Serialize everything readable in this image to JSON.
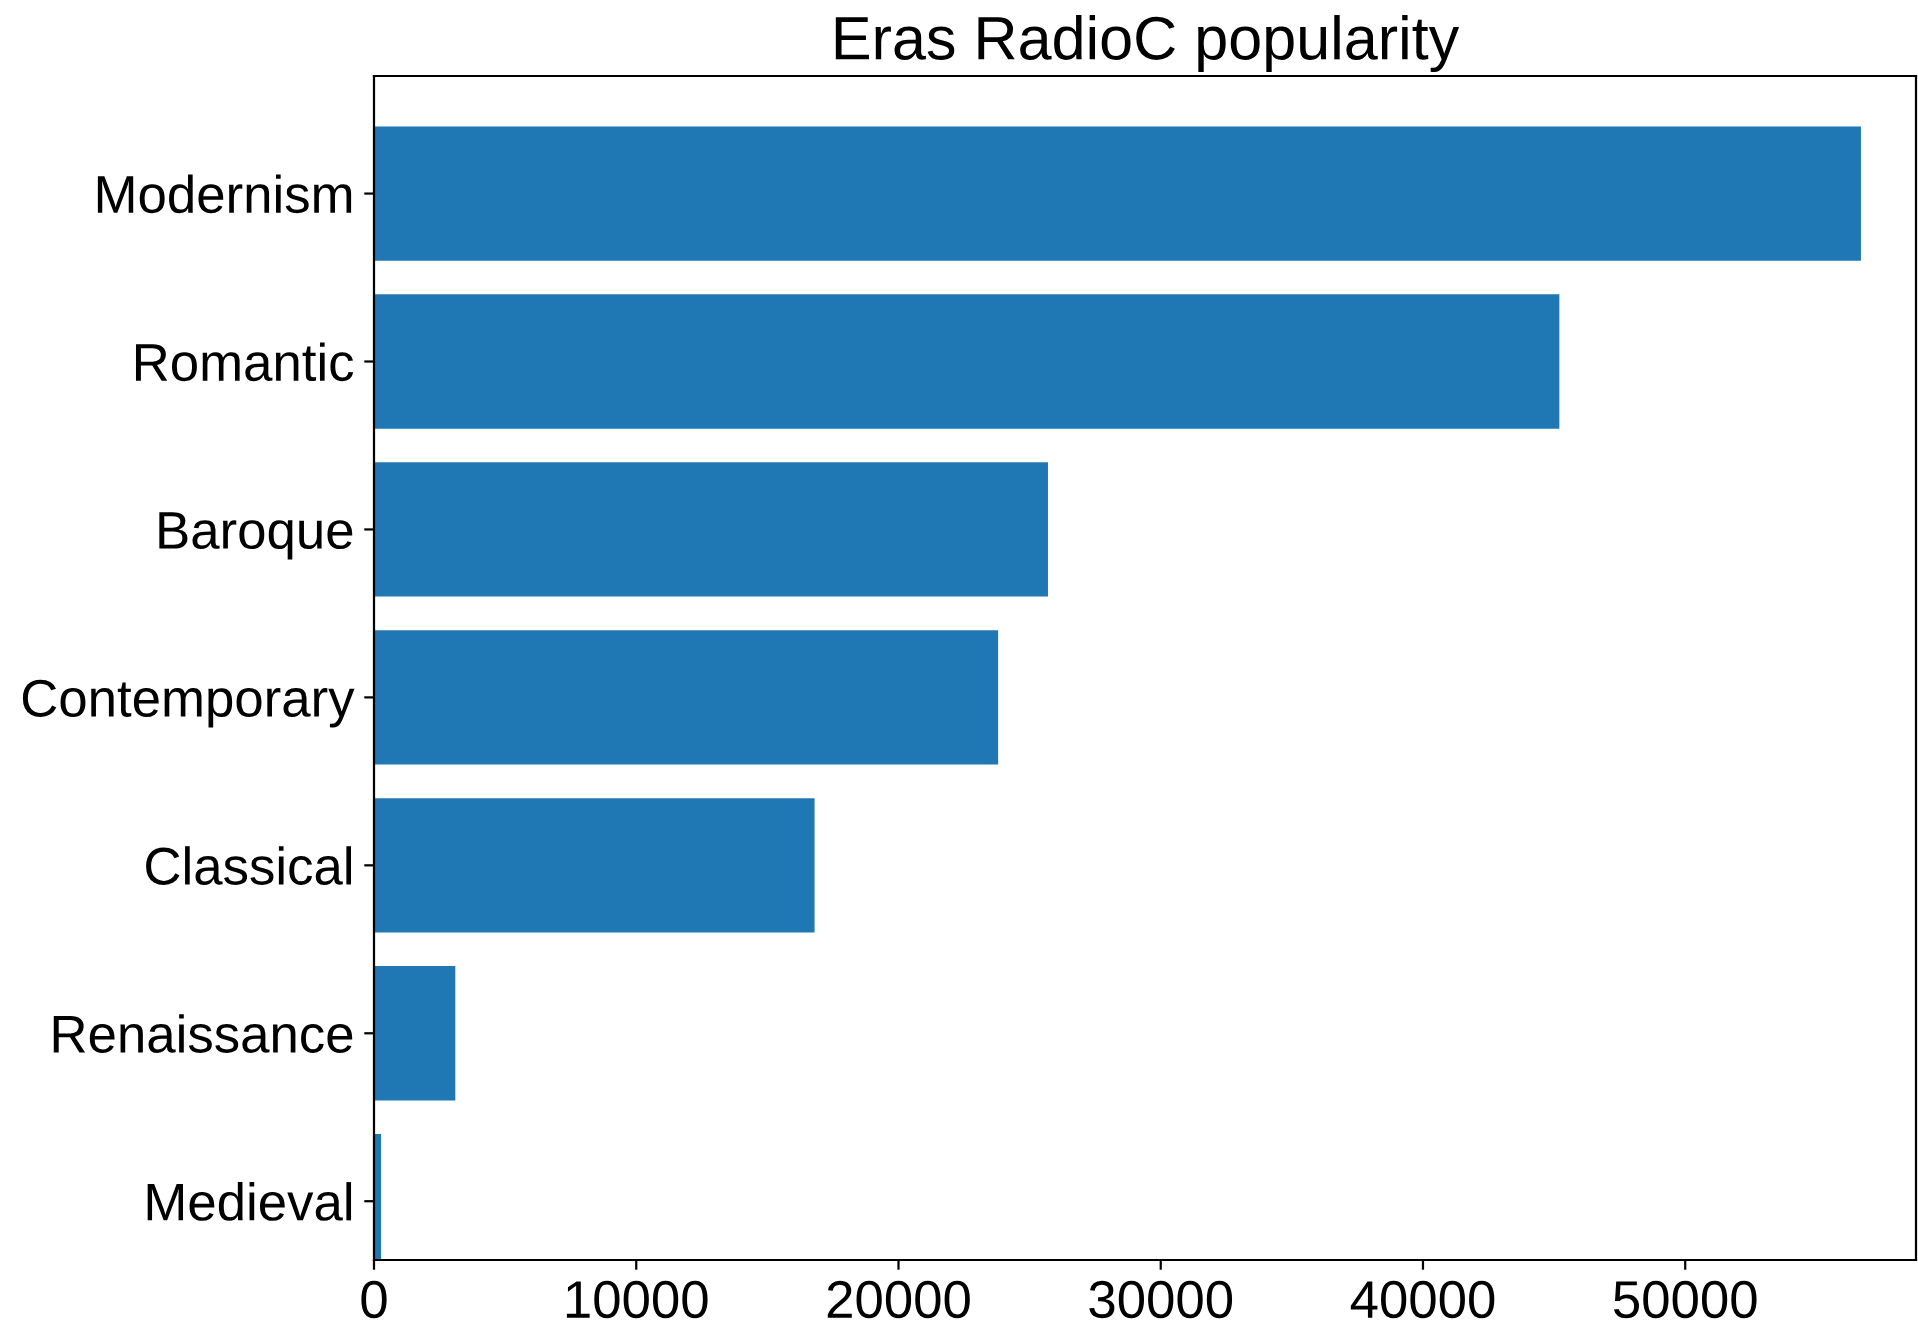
{
  "chart_data": {
    "type": "bar",
    "orientation": "horizontal",
    "title": "Eras RadioC popularity",
    "categories": [
      "Modernism",
      "Romantic",
      "Baroque",
      "Contemporary",
      "Classical",
      "Renaissance",
      "Medieval"
    ],
    "values": [
      56700,
      45200,
      25700,
      23800,
      16800,
      3100,
      270
    ],
    "color": "#1f77b4",
    "xlim": [
      0,
      58800
    ],
    "xticks": [
      0,
      10000,
      20000,
      30000,
      40000,
      50000
    ],
    "grid": false
  }
}
